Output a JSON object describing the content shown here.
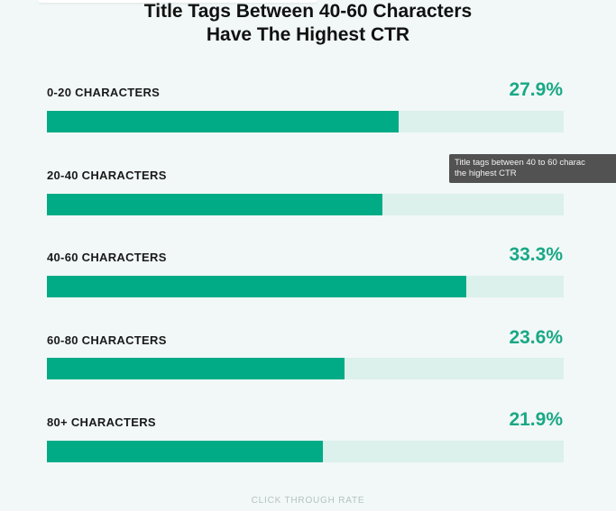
{
  "chart_data": {
    "type": "bar",
    "orientation": "horizontal",
    "title": [
      "Title Tags Between 40-60 Characters",
      "Have The Highest CTR"
    ],
    "categories": [
      "0-20 CHARACTERS",
      "20-40 CHARACTERS",
      "40-60 CHARACTERS",
      "60-80 CHARACTERS",
      "80+ CHARACTERS"
    ],
    "values": [
      27.9,
      26.6,
      33.3,
      23.6,
      21.9
    ],
    "value_labels": [
      "27.9%",
      "",
      "33.3%",
      "23.6%",
      "21.9%"
    ],
    "xlabel": "CLICK THROUGH RATE",
    "xlim": [
      0,
      41
    ],
    "grid": false,
    "colors": {
      "bar": "#00ab86",
      "track": "#dcf0ec",
      "value_text": "#19a886",
      "background": "#f1f8f7"
    }
  },
  "tooltip": {
    "lines": [
      "Title tags between 40 to 60 charac",
      "the highest CTR"
    ]
  }
}
